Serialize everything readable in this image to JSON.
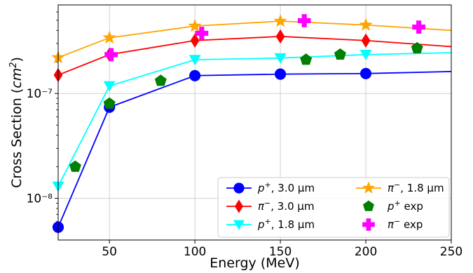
{
  "chart_data": {
    "type": "line",
    "xlabel": "Energy (MeV)",
    "ylabel": "Cross Section (cm²)",
    "xlim": [
      20,
      250
    ],
    "ylim": [
      4e-09,
      7e-07
    ],
    "yscale": "log",
    "grid": true,
    "legend_position": "lower right",
    "x_ticks": [
      50,
      100,
      150,
      200,
      250
    ],
    "x_tick_labels": [
      "50",
      "100",
      "150",
      "200",
      "250"
    ],
    "y_ticks": [
      1e-08,
      1e-07
    ],
    "y_tick_labels": [
      "10⁻⁸",
      "10⁻⁷"
    ],
    "series": [
      {
        "name": "p⁺, 3.0 μm",
        "color": "#0000ff",
        "marker": "circle",
        "line": true,
        "x": [
          20,
          50,
          100,
          150,
          200,
          250
        ],
        "y": [
          5.3e-09,
          7.4e-08,
          1.48e-07,
          1.53e-07,
          1.55e-07,
          1.62e-07
        ],
        "marker_x": [
          20,
          50,
          100,
          150,
          200
        ]
      },
      {
        "name": "π⁻, 3.0 μm",
        "color": "#ff0000",
        "marker": "diamond",
        "line": true,
        "x": [
          20,
          50,
          100,
          150,
          200,
          250
        ],
        "y": [
          1.5e-07,
          2.35e-07,
          3.2e-07,
          3.5e-07,
          3.2e-07,
          2.8e-07
        ],
        "marker_x": [
          20,
          50,
          100,
          150,
          200
        ]
      },
      {
        "name": "p⁺, 1.8 μm",
        "color": "#00ffff",
        "marker": "triangle-down",
        "line": true,
        "x": [
          20,
          50,
          100,
          150,
          200,
          250
        ],
        "y": [
          1.3e-08,
          1.18e-07,
          2.1e-07,
          2.18e-07,
          2.35e-07,
          2.45e-07
        ],
        "marker_x": [
          20,
          50,
          100,
          150,
          200
        ]
      },
      {
        "name": "π⁻, 1.8 μm",
        "color": "#ffa500",
        "marker": "star",
        "line": true,
        "x": [
          20,
          50,
          100,
          150,
          200,
          250
        ],
        "y": [
          2.2e-07,
          3.4e-07,
          4.4e-07,
          4.9e-07,
          4.5e-07,
          4e-07
        ],
        "marker_x": [
          20,
          50,
          100,
          150,
          200
        ]
      },
      {
        "name": "p⁺ exp",
        "color": "#008000",
        "marker": "pentagon",
        "line": false,
        "x": [
          30,
          50,
          80,
          165,
          185,
          230
        ],
        "y": [
          2e-08,
          8e-08,
          1.32e-07,
          2.1e-07,
          2.35e-07,
          2.7e-07
        ]
      },
      {
        "name": "π⁻ exp",
        "color": "#ff00ff",
        "marker": "plus",
        "line": false,
        "x": [
          51,
          104,
          164,
          231
        ],
        "y": [
          2.35e-07,
          3.75e-07,
          4.95e-07,
          4.3e-07
        ]
      }
    ],
    "legend_entries": [
      {
        "label_base": "p",
        "label_sup": "+",
        "label_rest": ", 3.0 μm"
      },
      {
        "label_base": "π",
        "label_sup": "−",
        "label_rest": ", 3.0 μm"
      },
      {
        "label_base": "p",
        "label_sup": "+",
        "label_rest": ", 1.8 μm"
      },
      {
        "label_base": "π",
        "label_sup": "−",
        "label_rest": ", 1.8 μm"
      },
      {
        "label_base": "p",
        "label_sup": "+",
        "label_rest": " exp"
      },
      {
        "label_base": "π",
        "label_sup": "−",
        "label_rest": " exp"
      }
    ]
  }
}
